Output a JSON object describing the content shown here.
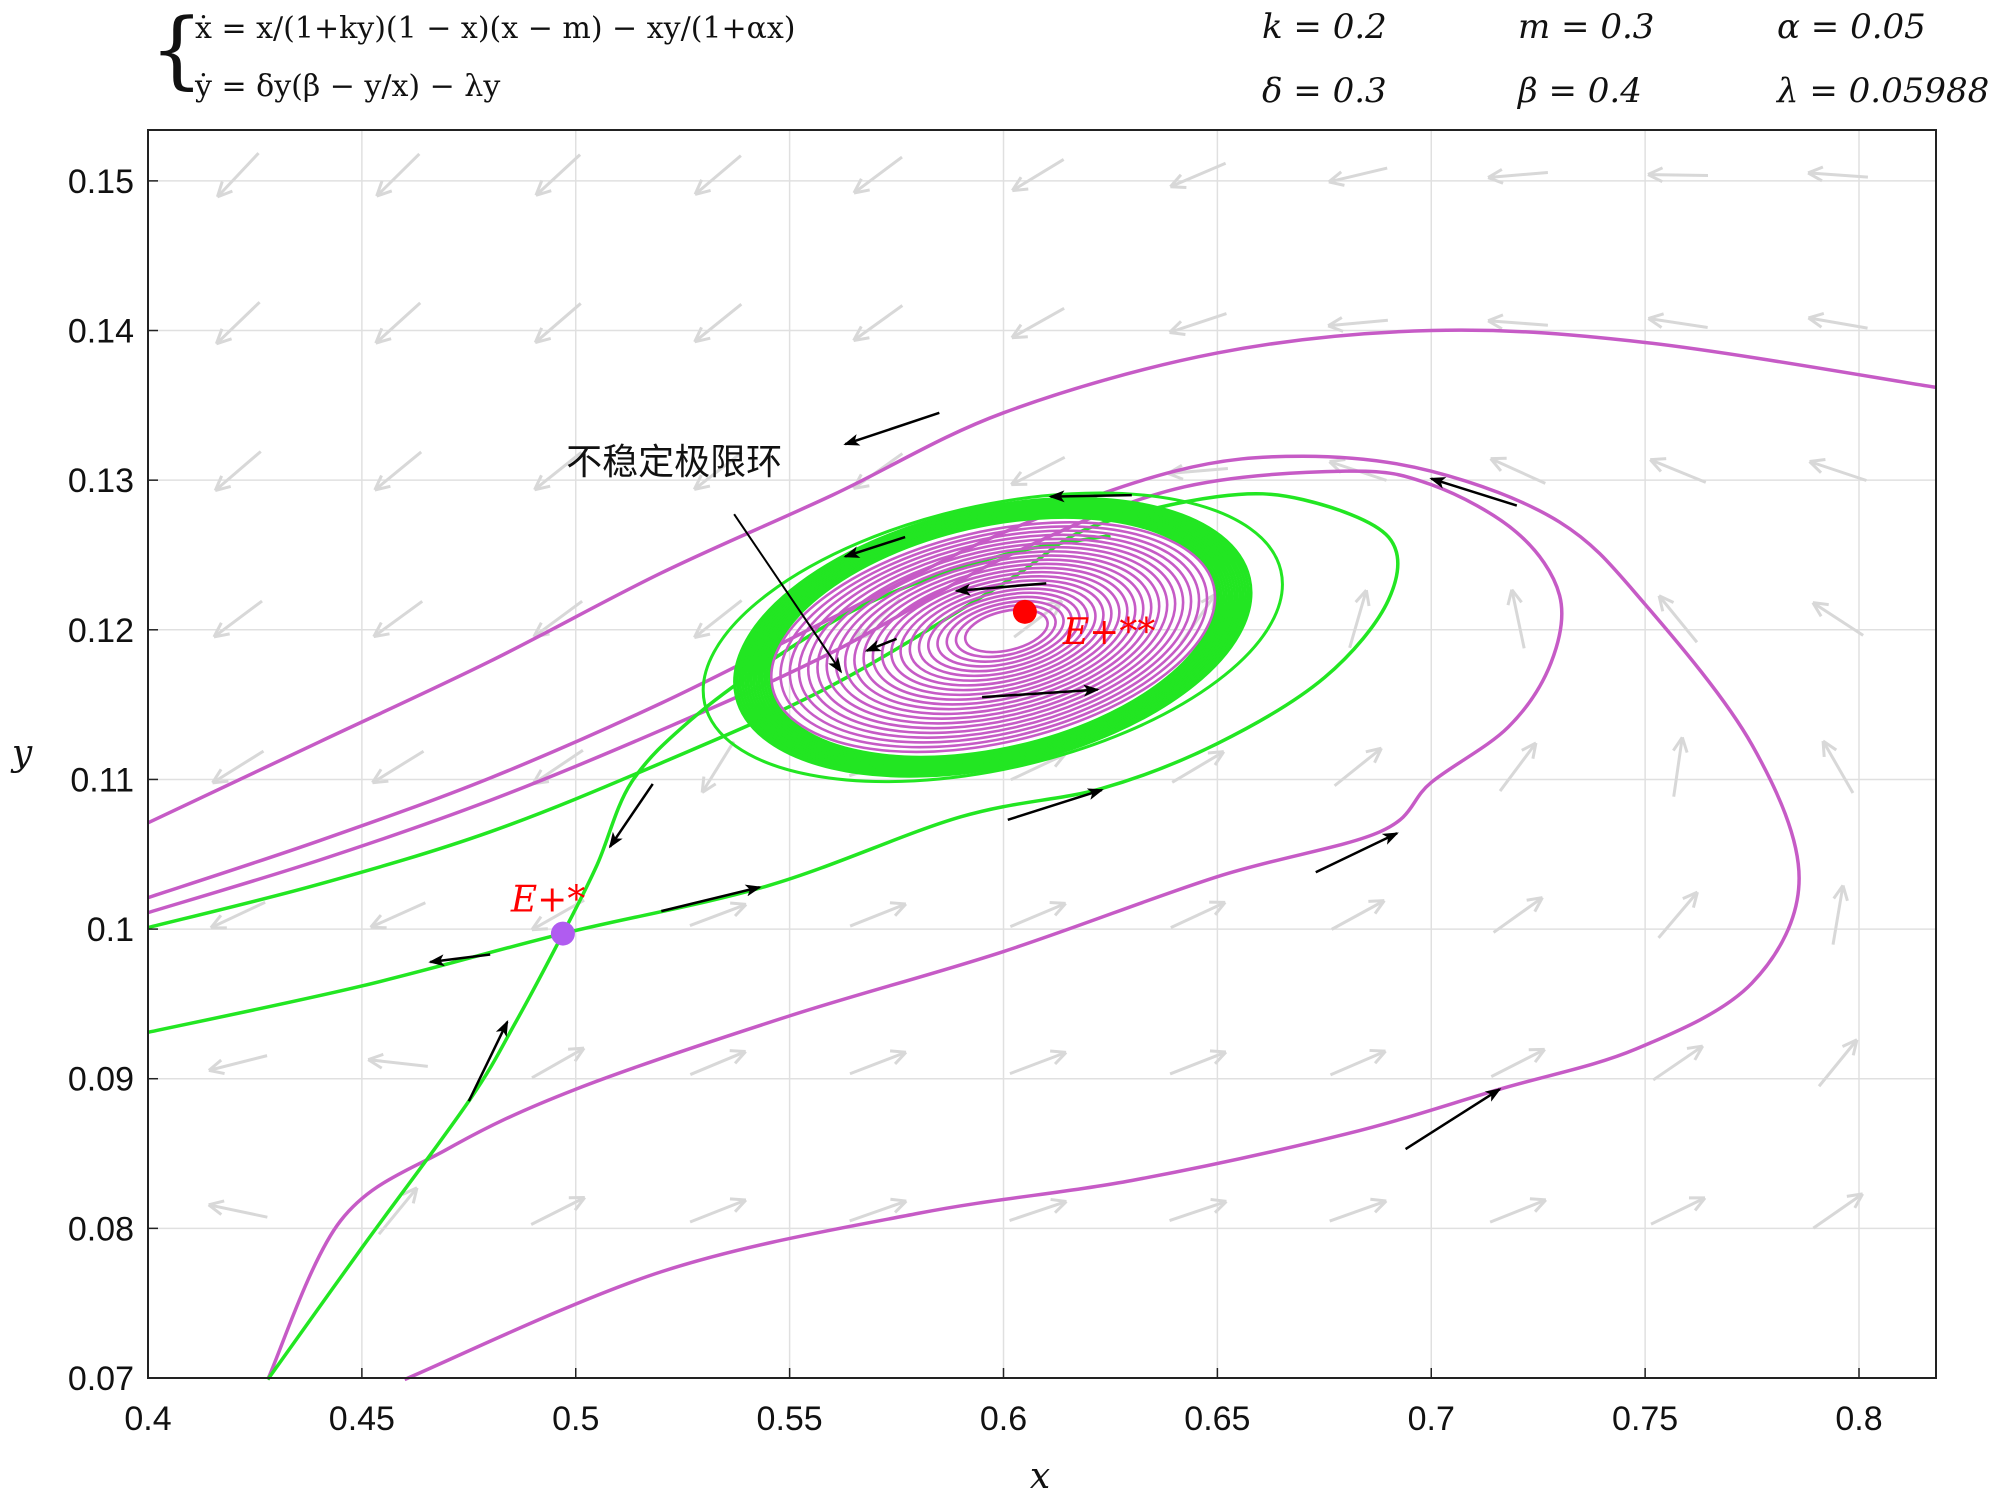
{
  "header": {
    "equations": [
      "ẋ = x/(1+ky)(1 − x)(x − m) − xy/(1+αx)",
      "ẏ = δy(β − y/x) − λy"
    ],
    "params": [
      {
        "label": "k = 0.2"
      },
      {
        "label": "m = 0.3"
      },
      {
        "label": "α = 0.05"
      },
      {
        "label": "δ = 0.3"
      },
      {
        "label": "β = 0.4"
      },
      {
        "label": "λ = 0.05988"
      }
    ]
  },
  "chart_data": {
    "type": "scatter",
    "title": "",
    "xlabel": "x",
    "ylabel": "y",
    "xlim": [
      0.4,
      0.818
    ],
    "ylim": [
      0.07,
      0.1534
    ],
    "grid": true,
    "xticks": [
      "0.4",
      "0.45",
      "0.5",
      "0.55",
      "0.6",
      "0.65",
      "0.7",
      "0.75",
      "0.8"
    ],
    "yticks": [
      "0.07",
      "0.08",
      "0.09",
      "0.1",
      "0.11",
      "0.12",
      "0.13",
      "0.14",
      "0.15"
    ],
    "colors": {
      "purple": "#c65bc6",
      "green": "#22e622",
      "field": "#d8d8d8",
      "equilibrium_stable": "#ff0000",
      "equilibrium_saddle": "#b05cf0",
      "annotation": "#ff0000"
    },
    "equilibria": [
      {
        "name": "saddle",
        "label": "E+*",
        "x": 0.497,
        "y": 0.0997
      },
      {
        "name": "focus",
        "label": "E+**",
        "x": 0.605,
        "y": 0.1212
      }
    ],
    "annotation": {
      "text": "不稳定极限环",
      "x": 0.523,
      "y": 0.1304,
      "target": [
        0.562,
        0.1172
      ]
    },
    "series": [
      {
        "color": "purple",
        "points": [
          [
            0.4,
            0.1071
          ],
          [
            0.44,
            0.1125
          ],
          [
            0.48,
            0.1179
          ],
          [
            0.52,
            0.1238
          ],
          [
            0.56,
            0.129
          ],
          [
            0.6,
            0.1345
          ],
          [
            0.65,
            0.1385
          ],
          [
            0.7,
            0.14
          ],
          [
            0.75,
            0.1392
          ],
          [
            0.818,
            0.1362
          ]
        ]
      },
      {
        "color": "purple",
        "points": [
          [
            0.4,
            0.1021
          ],
          [
            0.44,
            0.1059
          ],
          [
            0.48,
            0.1101
          ],
          [
            0.52,
            0.1151
          ],
          [
            0.56,
            0.1208
          ],
          [
            0.6,
            0.1265
          ],
          [
            0.64,
            0.1306
          ],
          [
            0.67,
            0.1316
          ],
          [
            0.7,
            0.1306
          ],
          [
            0.73,
            0.1272
          ],
          [
            0.75,
            0.1217
          ],
          [
            0.775,
            0.1123
          ],
          [
            0.786,
            0.1034
          ],
          [
            0.775,
            0.0964
          ],
          [
            0.748,
            0.092
          ],
          [
            0.716,
            0.0893
          ],
          [
            0.68,
            0.0863
          ],
          [
            0.63,
            0.0832
          ],
          [
            0.58,
            0.081
          ],
          [
            0.52,
            0.0771
          ],
          [
            0.46,
            0.0699
          ]
        ]
      },
      {
        "color": "purple",
        "points": [
          [
            0.4,
            0.1011
          ],
          [
            0.44,
            0.1046
          ],
          [
            0.48,
            0.1086
          ],
          [
            0.52,
            0.1133
          ],
          [
            0.56,
            0.1185
          ],
          [
            0.6,
            0.1248
          ],
          [
            0.64,
            0.1294
          ],
          [
            0.68,
            0.1306
          ],
          [
            0.7,
            0.1297
          ],
          [
            0.72,
            0.1265
          ],
          [
            0.73,
            0.1223
          ],
          [
            0.728,
            0.1178
          ],
          [
            0.718,
            0.1135
          ],
          [
            0.7,
            0.1098
          ],
          [
            0.688,
            0.1065
          ],
          [
            0.65,
            0.1035
          ],
          [
            0.6,
            0.0985
          ],
          [
            0.55,
            0.0942
          ],
          [
            0.5,
            0.0893
          ],
          [
            0.47,
            0.0853
          ],
          [
            0.445,
            0.0805
          ],
          [
            0.428,
            0.0699
          ]
        ]
      },
      {
        "color": "green",
        "points": [
          [
            0.4,
            0.1001
          ],
          [
            0.44,
            0.103
          ],
          [
            0.48,
            0.1065
          ],
          [
            0.52,
            0.1111
          ],
          [
            0.56,
            0.1163
          ],
          [
            0.6,
            0.1231
          ],
          [
            0.62,
            0.1268
          ],
          [
            0.65,
            0.1289
          ],
          [
            0.67,
            0.1287
          ],
          [
            0.69,
            0.1262
          ],
          [
            0.69,
            0.122
          ],
          [
            0.675,
            0.1168
          ],
          [
            0.65,
            0.1124
          ],
          [
            0.623,
            0.1094
          ],
          [
            0.59,
            0.1075
          ],
          [
            0.545,
            0.1029
          ],
          [
            0.497,
            0.0997
          ],
          [
            0.45,
            0.0962
          ],
          [
            0.4,
            0.0931
          ]
        ]
      },
      {
        "color": "green",
        "points": [
          [
            0.428,
            0.0699
          ],
          [
            0.45,
            0.0787
          ],
          [
            0.475,
            0.0885
          ],
          [
            0.486,
            0.0938
          ],
          [
            0.497,
            0.0997
          ],
          [
            0.505,
            0.1043
          ],
          [
            0.513,
            0.1098
          ],
          [
            0.527,
            0.114
          ],
          [
            0.547,
            0.1182
          ],
          [
            0.57,
            0.122
          ],
          [
            0.6,
            0.125
          ],
          [
            0.625,
            0.1263
          ]
        ]
      }
    ],
    "cycle": {
      "cx": 0.5975,
      "cy": 0.1195,
      "rx": 0.054,
      "ry": 0.0072,
      "tilt_deg": -13
    }
  }
}
